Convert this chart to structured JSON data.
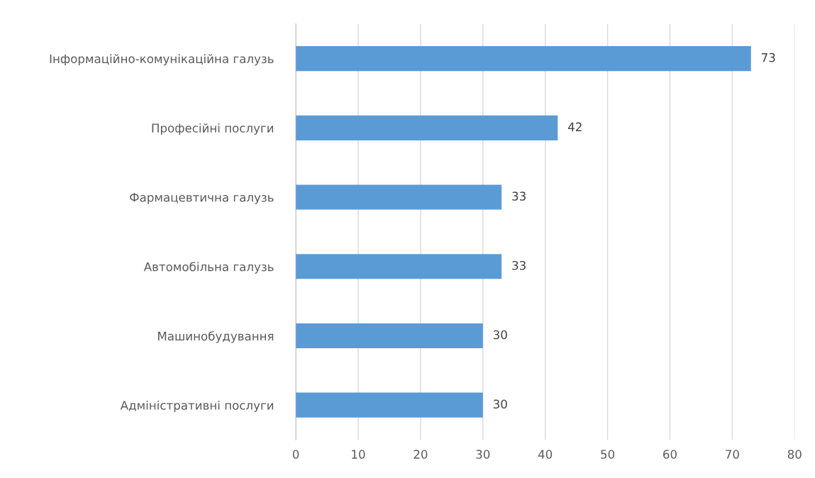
{
  "chart_data": {
    "type": "bar",
    "orientation": "horizontal",
    "categories": [
      "Інформаційно-комунікаційна галузь",
      "Професійні послуги",
      "Фармацевтична галузь",
      "Автомобільна галузь",
      "Машинобудування",
      "Адміністративні послуги"
    ],
    "values": [
      73,
      42,
      33,
      33,
      30,
      30
    ],
    "color": "#5b9bd5",
    "xlim": [
      0,
      80
    ],
    "xticks": [
      0,
      10,
      20,
      30,
      40,
      50,
      60,
      70,
      80
    ],
    "grid": "x",
    "data_labels": true
  }
}
